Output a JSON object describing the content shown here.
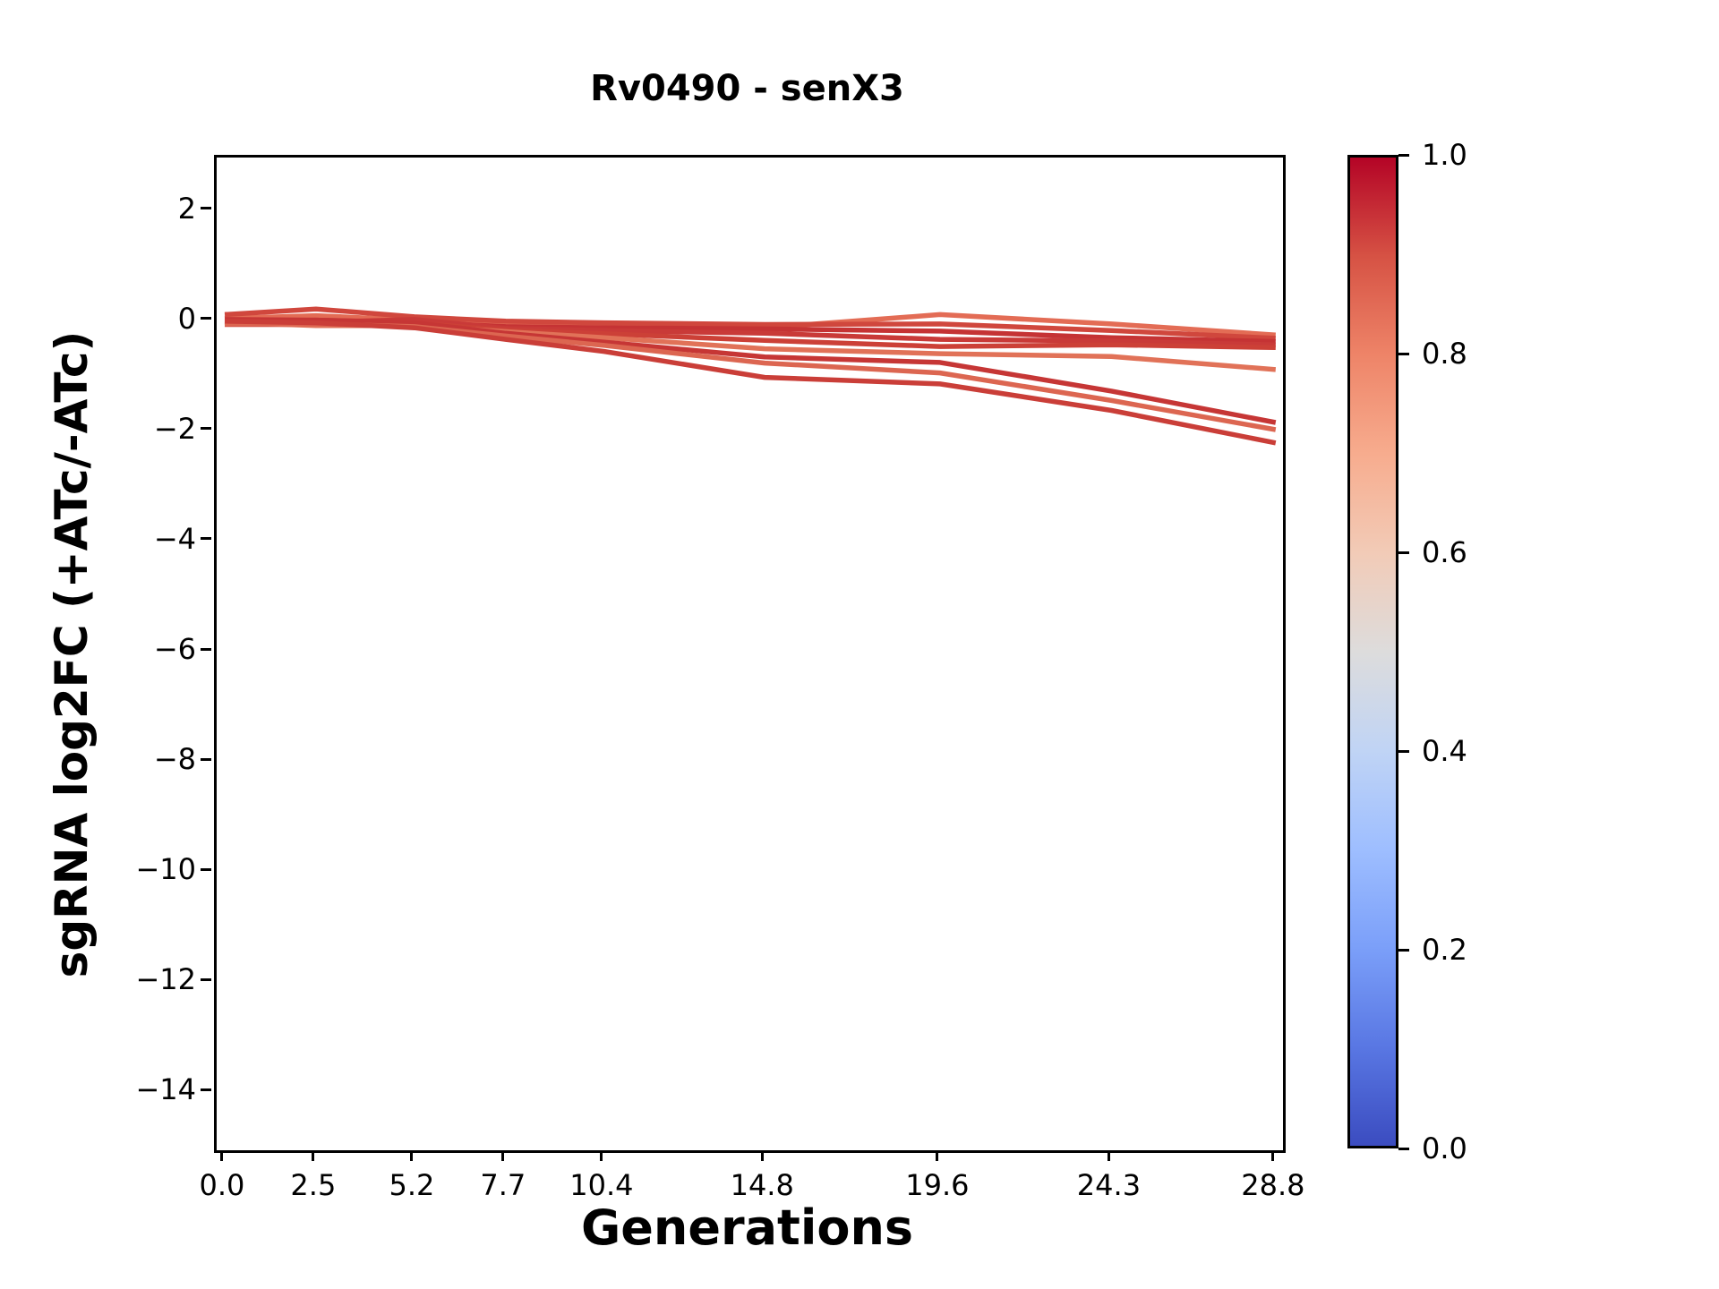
{
  "chart_data": {
    "type": "line",
    "title": "Rv0490 - senX3",
    "xlabel": "Generations",
    "ylabel": "sgRNA log2FC (+ATc/-ATc)",
    "grid": false,
    "legend": "none",
    "xlim": [
      -0.22,
      29.0
    ],
    "ylim": [
      -15.05,
      2.97
    ],
    "x": [
      0.0,
      2.5,
      5.2,
      7.7,
      10.4,
      14.8,
      19.6,
      24.3,
      28.8
    ],
    "xtick_labels": [
      "0.0",
      "2.5",
      "5.2",
      "7.7",
      "10.4",
      "14.8",
      "19.6",
      "24.3",
      "28.8"
    ],
    "ytick_values": [
      2,
      0,
      -2,
      -4,
      -6,
      -8,
      -10,
      -12,
      -14
    ],
    "ytick_labels": [
      "2",
      "0",
      "−2",
      "−4",
      "−6",
      "−8",
      "−10",
      "−12",
      "−14"
    ],
    "series": [
      {
        "name": "line_1",
        "color": "#e36c55",
        "values": [
          0.05,
          0.1,
          0.02,
          -0.08,
          -0.06,
          -0.12,
          0.12,
          -0.05,
          -0.25
        ]
      },
      {
        "name": "line_2",
        "color": "#d0473d",
        "values": [
          0.12,
          0.22,
          0.08,
          0.0,
          -0.03,
          -0.06,
          -0.05,
          -0.17,
          -0.31
        ]
      },
      {
        "name": "line_3",
        "color": "#c53334",
        "values": [
          0.0,
          0.02,
          -0.02,
          -0.1,
          -0.12,
          -0.14,
          -0.18,
          -0.3,
          -0.37
        ]
      },
      {
        "name": "line_4",
        "color": "#c93a38",
        "values": [
          -0.03,
          -0.02,
          0.03,
          -0.13,
          -0.17,
          -0.22,
          -0.33,
          -0.36,
          -0.43
        ]
      },
      {
        "name": "line_5",
        "color": "#cc4037",
        "values": [
          -0.06,
          -0.06,
          -0.04,
          -0.16,
          -0.23,
          -0.35,
          -0.46,
          -0.43,
          -0.48
        ]
      },
      {
        "name": "line_6",
        "color": "#e17258",
        "values": [
          -0.02,
          -0.08,
          -0.08,
          -0.19,
          -0.3,
          -0.5,
          -0.59,
          -0.64,
          -0.88
        ]
      },
      {
        "name": "line_7",
        "color": "#c63635",
        "values": [
          0.03,
          0.02,
          -0.03,
          -0.22,
          -0.38,
          -0.65,
          -0.75,
          -1.27,
          -1.84
        ]
      },
      {
        "name": "line_8",
        "color": "#dc6651",
        "values": [
          -0.05,
          -0.05,
          -0.1,
          -0.27,
          -0.44,
          -0.76,
          -0.94,
          -1.44,
          -1.97
        ]
      },
      {
        "name": "line_9",
        "color": "#ca3e38",
        "values": [
          0.0,
          -0.03,
          -0.12,
          -0.33,
          -0.55,
          -1.02,
          -1.14,
          -1.62,
          -2.21
        ]
      }
    ],
    "colorbar": {
      "cmap": "coolwarm",
      "vmin": 0.0,
      "vmax": 1.0,
      "tick_values": [
        1.0,
        0.8,
        0.6,
        0.4,
        0.2,
        0.0
      ],
      "tick_labels": [
        "1.0",
        "0.8",
        "0.6",
        "0.4",
        "0.2",
        "0.0"
      ],
      "gradient_stops_bottom_to_top": [
        "#3b4cc0",
        "#5977e3",
        "#7b9ff9",
        "#9ebeff",
        "#c0d4f5",
        "#dddcdc",
        "#f2cbb7",
        "#f7ac8e",
        "#ee8468",
        "#d65244",
        "#b40426"
      ]
    }
  }
}
